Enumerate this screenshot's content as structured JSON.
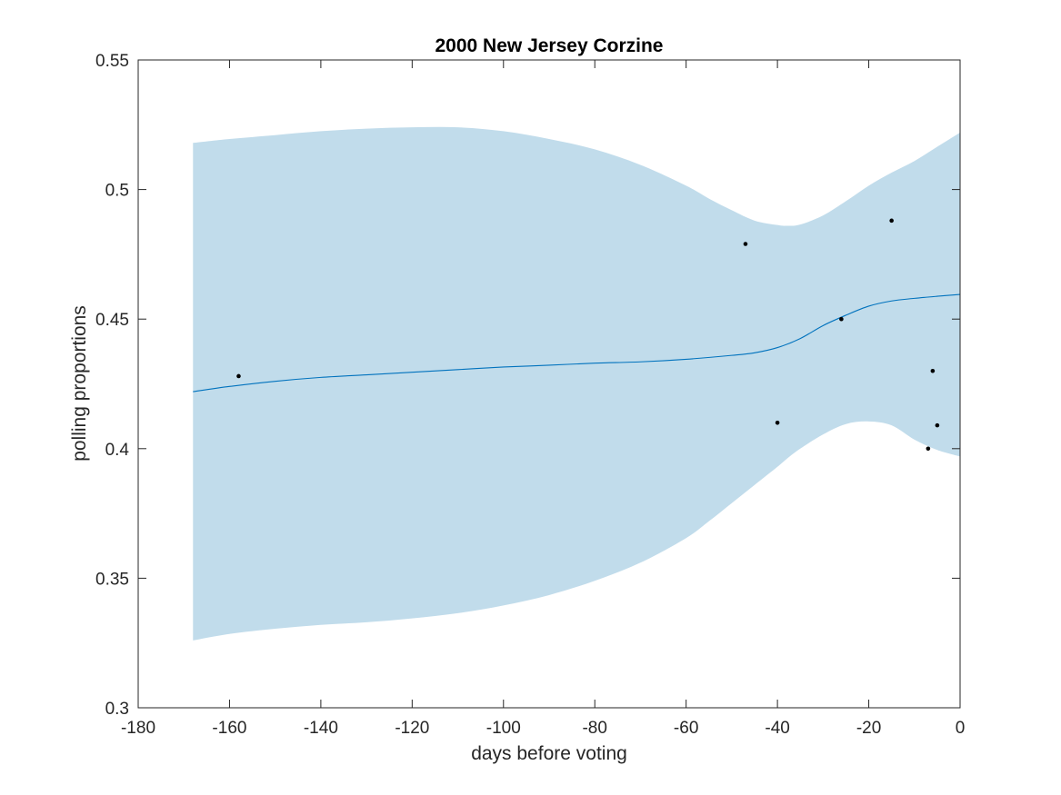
{
  "chart_data": {
    "type": "line",
    "title": "2000 New Jersey Corzine",
    "xlabel": "days before voting",
    "ylabel": "polling proportions",
    "xlim": [
      -180,
      0
    ],
    "ylim": [
      0.3,
      0.55
    ],
    "xticks": [
      -180,
      -160,
      -140,
      -120,
      -100,
      -80,
      -60,
      -40,
      -20,
      0
    ],
    "yticks": [
      0.3,
      0.35,
      0.4,
      0.45,
      0.5,
      0.55
    ],
    "xtick_labels": [
      "-180",
      "-160",
      "-140",
      "-120",
      "-100",
      "-80",
      "-60",
      "-40",
      "-20",
      "0"
    ],
    "ytick_labels": [
      "0.3",
      "0.35",
      "0.4",
      "0.45",
      "0.5",
      "0.55"
    ],
    "grid": false,
    "colors": {
      "band": "#c1dceb",
      "line": "#0072bd",
      "points": "#000000",
      "axes": "#262626"
    },
    "series": [
      {
        "type": "line",
        "x": [
          -168,
          -160,
          -150,
          -140,
          -130,
          -120,
          -110,
          -100,
          -90,
          -80,
          -70,
          -60,
          -50,
          -45,
          -40,
          -35,
          -30,
          -25,
          -20,
          -15,
          -10,
          -5,
          0
        ],
        "values": [
          0.422,
          0.424,
          0.426,
          0.4275,
          0.4285,
          0.4295,
          0.4305,
          0.4315,
          0.4322,
          0.433,
          0.4335,
          0.4345,
          0.436,
          0.437,
          0.439,
          0.4425,
          0.4475,
          0.4515,
          0.455,
          0.457,
          0.458,
          0.4588,
          0.4595
        ]
      },
      {
        "type": "band",
        "x": [
          -168,
          -160,
          -150,
          -140,
          -130,
          -120,
          -110,
          -100,
          -90,
          -80,
          -70,
          -60,
          -55,
          -50,
          -45,
          -40,
          -38,
          -35,
          -30,
          -25,
          -20,
          -15,
          -10,
          -5,
          0
        ],
        "upper": [
          0.518,
          0.5195,
          0.521,
          0.5225,
          0.5235,
          0.524,
          0.524,
          0.5225,
          0.5195,
          0.5155,
          0.5095,
          0.5015,
          0.4965,
          0.492,
          0.488,
          0.4863,
          0.486,
          0.4865,
          0.49,
          0.4955,
          0.5015,
          0.5065,
          0.511,
          0.5165,
          0.522
        ],
        "lower": [
          0.326,
          0.3285,
          0.3305,
          0.332,
          0.333,
          0.3345,
          0.3365,
          0.3395,
          0.3435,
          0.349,
          0.356,
          0.3655,
          0.372,
          0.379,
          0.386,
          0.393,
          0.396,
          0.4,
          0.4055,
          0.4095,
          0.4105,
          0.409,
          0.4035,
          0.3995,
          0.397
        ]
      },
      {
        "type": "scatter",
        "x": [
          -158,
          -47,
          -40,
          -26,
          -15,
          -7,
          -6,
          -5
        ],
        "values": [
          0.428,
          0.479,
          0.41,
          0.45,
          0.488,
          0.4,
          0.43,
          0.409
        ]
      }
    ]
  }
}
